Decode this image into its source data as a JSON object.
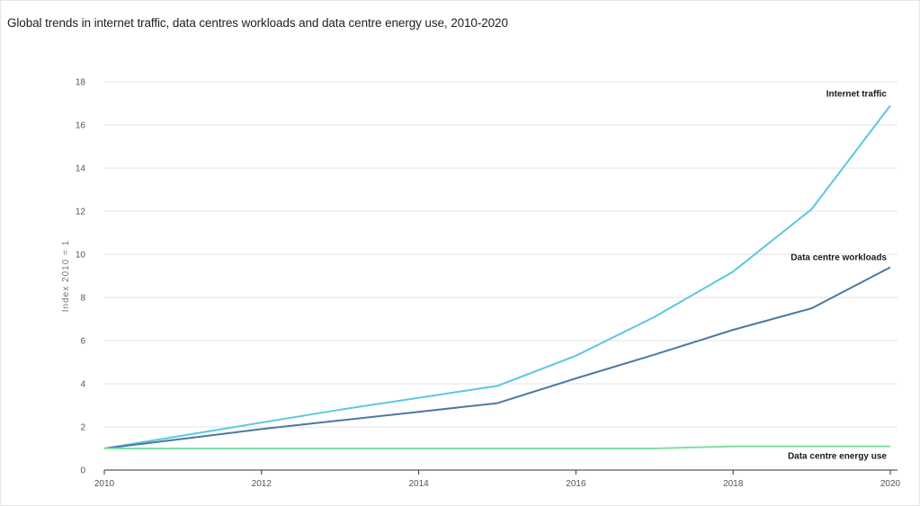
{
  "title": "Global trends in internet traffic, data centres workloads and data centre energy use, 2010-2020",
  "chart_data": {
    "type": "line",
    "title": "Global trends in internet traffic, data centres workloads and data centre energy use, 2010-2020",
    "xlabel": "",
    "ylabel": "Index 2010 = 1",
    "xlim": [
      2010,
      2020
    ],
    "ylim": [
      0,
      18
    ],
    "x_ticks": [
      "2010",
      "2012",
      "2014",
      "2016",
      "2018",
      "2020"
    ],
    "y_ticks": [
      "0",
      "2",
      "4",
      "6",
      "8",
      "10",
      "12",
      "14",
      "16",
      "18"
    ],
    "grid": "horizontal",
    "legend": "inline-labels",
    "x": [
      2010,
      2011,
      2012,
      2013,
      2014,
      2015,
      2016,
      2017,
      2018,
      2019,
      2020
    ],
    "series": [
      {
        "name": "Internet traffic",
        "color": "#5bc8e0",
        "values": [
          1.0,
          1.6,
          2.2,
          2.8,
          3.35,
          3.9,
          5.3,
          7.1,
          9.2,
          12.1,
          16.9
        ]
      },
      {
        "name": "Data centre workloads",
        "color": "#4a79a0",
        "values": [
          1.0,
          1.45,
          1.9,
          2.3,
          2.7,
          3.1,
          4.25,
          5.35,
          6.5,
          7.5,
          9.4
        ]
      },
      {
        "name": "Data centre energy use",
        "color": "#7ddfa0",
        "values": [
          1.0,
          1.0,
          1.0,
          1.0,
          1.0,
          1.0,
          1.0,
          1.0,
          1.1,
          1.1,
          1.1
        ]
      }
    ]
  }
}
